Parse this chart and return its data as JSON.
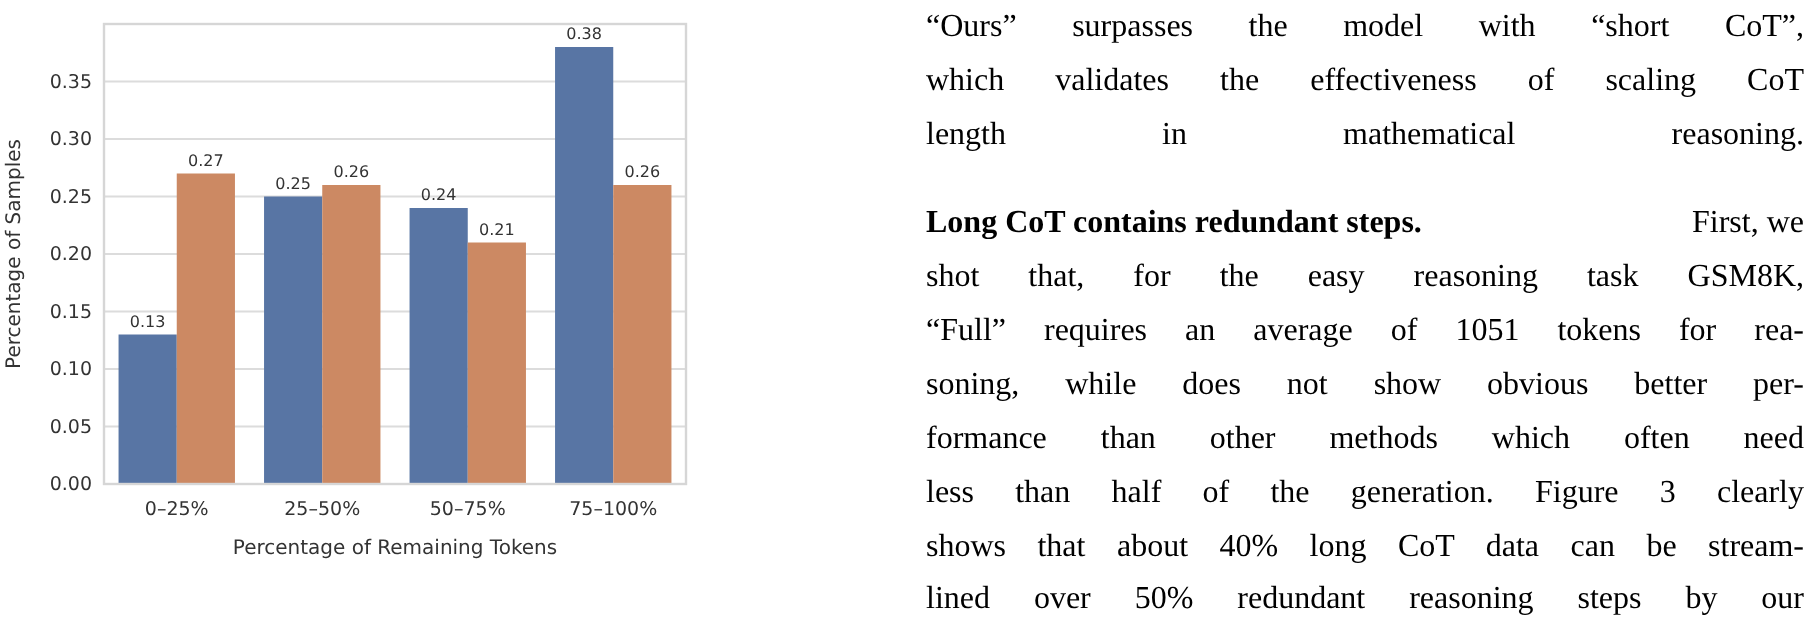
{
  "chart_data": {
    "type": "bar",
    "xlabel": "Percentage of Remaining Tokens",
    "ylabel": "Percentage of Samples",
    "categories": [
      "0–25%",
      "25–50%",
      "50–75%",
      "75–100%"
    ],
    "series": [
      {
        "color": "#5875a4",
        "values": [
          0.13,
          0.25,
          0.24,
          0.38
        ]
      },
      {
        "color": "#cc8963",
        "values": [
          0.27,
          0.26,
          0.21,
          0.26
        ]
      }
    ],
    "ylim": [
      0,
      0.4
    ],
    "yticks": [
      {
        "value": 0,
        "label": "0.00"
      },
      {
        "value": 0.05,
        "label": "0.05"
      },
      {
        "value": 0.1,
        "label": "0.10"
      },
      {
        "value": 0.15,
        "label": "0.15"
      },
      {
        "value": 0.2,
        "label": "0.20"
      },
      {
        "value": 0.25,
        "label": "0.25"
      },
      {
        "value": 0.3,
        "label": "0.30"
      },
      {
        "value": 0.35,
        "label": "0.35"
      }
    ],
    "grid": "y",
    "data_labels": true,
    "annotations": [
      "“Ours” surpasses the model with “short CoT”,",
      "which validates the effectiveness of scaling CoT",
      "length in mathematical reasoning.",
      "Long CoT contains redundant steps.",
      "First, we",
      "shot that, for the easy reasoning task GSM8K,",
      "“Full” requires an average of 1051 tokens for rea-",
      "soning, while does not show obvious better per-",
      "formance than other methods which often need",
      "less than half of the generation. Figure 3 clearly",
      "shows that about 40% long CoT data can be stream-",
      "lined over 50% redundant reasoning steps by our"
    ]
  }
}
